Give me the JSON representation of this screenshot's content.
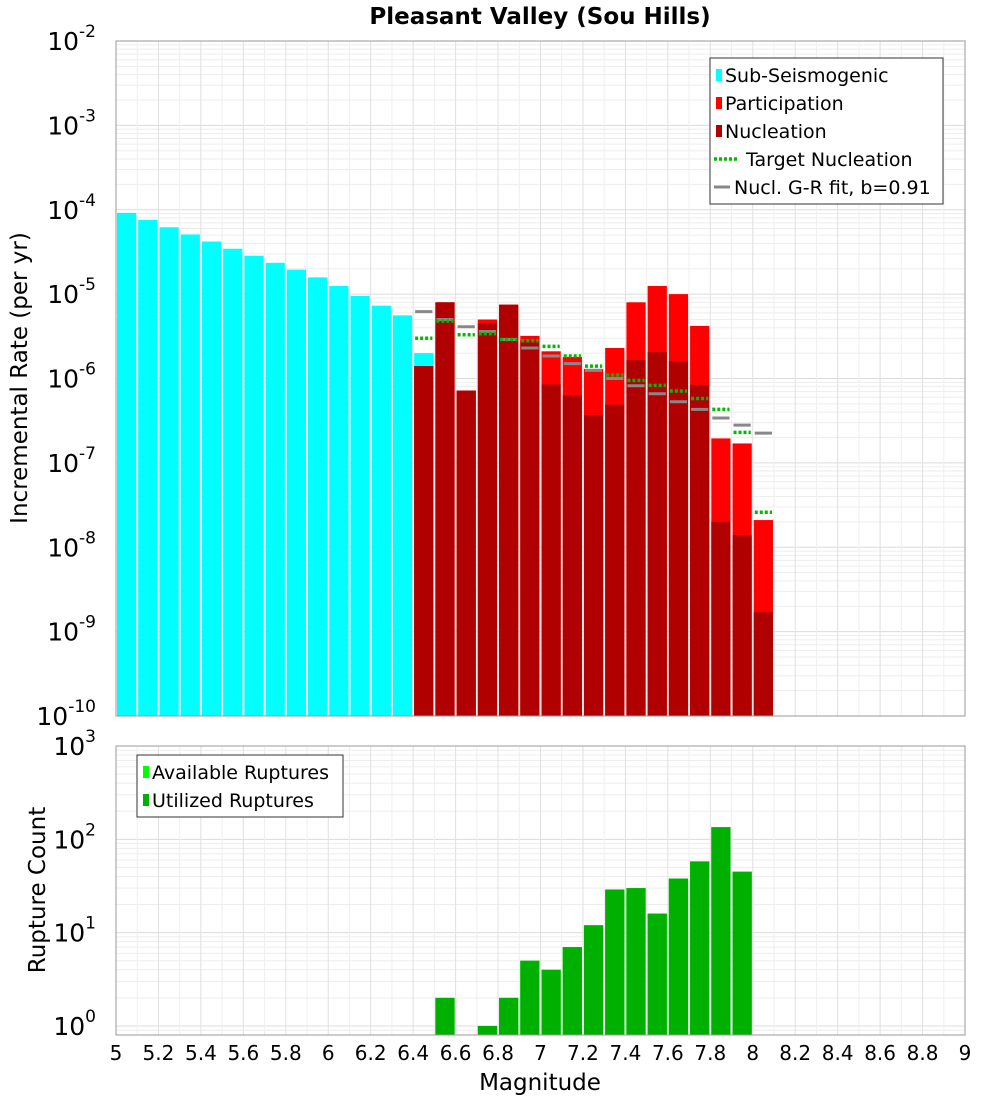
{
  "chart_data": [
    {
      "type": "bar",
      "title": "Pleasant Valley (Sou Hills)",
      "ylabel": "Incremental Rate (per yr)",
      "xlabel": "",
      "xlim": [
        5,
        9
      ],
      "ylim": [
        1e-10,
        0.01
      ],
      "yscale": "log",
      "bin_width": 0.1,
      "y_ticks": [
        {
          "exp": -10,
          "label_base": "10",
          "label_exp": "-10"
        },
        {
          "exp": -9,
          "label_base": "10",
          "label_exp": "-9"
        },
        {
          "exp": -8,
          "label_base": "10",
          "label_exp": "-8"
        },
        {
          "exp": -7,
          "label_base": "10",
          "label_exp": "-7"
        },
        {
          "exp": -6,
          "label_base": "10",
          "label_exp": "-6"
        },
        {
          "exp": -5,
          "label_base": "10",
          "label_exp": "-5"
        },
        {
          "exp": -4,
          "label_base": "10",
          "label_exp": "-4"
        },
        {
          "exp": -3,
          "label_base": "10",
          "label_exp": "-3"
        },
        {
          "exp": -2,
          "label_base": "10",
          "label_exp": "-2"
        }
      ],
      "legend": [
        {
          "label": "Sub-Seismogenic",
          "color": "#00ffff",
          "kind": "box"
        },
        {
          "label": "Participation",
          "color": "#ff0000",
          "kind": "box"
        },
        {
          "label": "Nucleation",
          "color": "#b00000",
          "kind": "box"
        },
        {
          "label": "Target Nucleation",
          "color": "#00bb00",
          "kind": "dotted"
        },
        {
          "label": "Nucl. G-R fit, b=0.91",
          "color": "#888888",
          "kind": "line"
        }
      ],
      "legend_position": "top-right",
      "series": [
        {
          "name": "Sub-Seismogenic",
          "color": "#00ffff",
          "x": [
            5.05,
            5.15,
            5.25,
            5.35,
            5.45,
            5.55,
            5.65,
            5.75,
            5.85,
            5.95,
            6.05,
            6.15,
            6.25,
            6.35,
            6.45
          ],
          "values": [
            9.2e-05,
            7.6e-05,
            6.2e-05,
            5.1e-05,
            4.2e-05,
            3.45e-05,
            2.85e-05,
            2.35e-05,
            1.95e-05,
            1.58e-05,
            1.25e-05,
            9.5e-06,
            7.3e-06,
            5.6e-06,
            2e-06
          ]
        },
        {
          "name": "Participation",
          "color": "#ff0000",
          "x": [
            6.45,
            6.55,
            6.65,
            6.75,
            6.85,
            6.95,
            7.05,
            7.15,
            7.25,
            7.35,
            7.45,
            7.55,
            7.65,
            7.75,
            7.85,
            7.95,
            8.05
          ],
          "values": [
            1.4e-06,
            8e-06,
            7.2e-07,
            5e-06,
            7.5e-06,
            3.2e-06,
            2.1e-06,
            1.8e-06,
            1.3e-06,
            2.3e-06,
            8e-06,
            1.25e-05,
            1e-05,
            4.2e-06,
            1.95e-07,
            1.7e-07,
            2.1e-08
          ]
        },
        {
          "name": "Nucleation",
          "color": "#b00000",
          "x": [
            6.45,
            6.55,
            6.65,
            6.75,
            6.85,
            6.95,
            7.05,
            7.15,
            7.25,
            7.35,
            7.45,
            7.55,
            7.65,
            7.75,
            7.85,
            7.95,
            8.05
          ],
          "values": [
            1.4e-06,
            8e-06,
            7.2e-07,
            4.5e-06,
            7.5e-06,
            2.8e-06,
            8.5e-07,
            6.3e-07,
            3.7e-07,
            4.9e-07,
            1.65e-06,
            2.05e-06,
            1.6e-06,
            8.4e-07,
            2e-08,
            1.4e-08,
            1.7e-09
          ]
        },
        {
          "name": "Target Nucleation",
          "color": "#00bb00",
          "x": [
            6.45,
            6.55,
            6.65,
            6.75,
            6.85,
            6.95,
            7.05,
            7.15,
            7.25,
            7.35,
            7.45,
            7.55,
            7.65,
            7.75,
            7.85,
            7.95,
            8.05
          ],
          "values": [
            3e-06,
            4.8e-06,
            3.3e-06,
            3.4e-06,
            2.9e-06,
            2.8e-06,
            2.4e-06,
            1.85e-06,
            1.4e-06,
            1.1e-06,
            9.5e-07,
            8.3e-07,
            7.1e-07,
            5.8e-07,
            4.3e-07,
            2.3e-07,
            2.6e-08
          ]
        },
        {
          "name": "Nucl. G-R fit, b=0.91",
          "color": "#888888",
          "x": [
            6.45,
            6.55,
            6.65,
            6.75,
            6.85,
            6.95,
            7.05,
            7.15,
            7.25,
            7.35,
            7.45,
            7.55,
            7.65,
            7.75,
            7.85,
            7.95,
            8.05
          ],
          "values": [
            6.2e-06,
            5e-06,
            4.1e-06,
            3.6e-06,
            2.9e-06,
            2.3e-06,
            1.85e-06,
            1.5e-06,
            1.25e-06,
            1e-06,
            8.2e-07,
            6.6e-07,
            5.3e-07,
            4.3e-07,
            3.4e-07,
            2.8e-07,
            2.25e-07
          ]
        }
      ]
    },
    {
      "type": "bar",
      "title": "",
      "ylabel": "Rupture Count",
      "xlabel": "Magnitude",
      "xlim": [
        5,
        9
      ],
      "ylim": [
        0.8,
        1000
      ],
      "yscale": "log",
      "bin_width": 0.1,
      "x_ticks": [
        "5",
        "5.2",
        "5.4",
        "5.6",
        "5.8",
        "6",
        "6.2",
        "6.4",
        "6.6",
        "6.8",
        "7",
        "7.2",
        "7.4",
        "7.6",
        "7.8",
        "8",
        "8.2",
        "8.4",
        "8.6",
        "8.8",
        "9"
      ],
      "y_ticks": [
        {
          "exp": 0,
          "label_base": "10",
          "label_exp": "0"
        },
        {
          "exp": 1,
          "label_base": "10",
          "label_exp": "1"
        },
        {
          "exp": 2,
          "label_base": "10",
          "label_exp": "2"
        },
        {
          "exp": 3,
          "label_base": "10",
          "label_exp": "3"
        }
      ],
      "legend": [
        {
          "label": "Available Ruptures",
          "color": "#00ff00",
          "kind": "box"
        },
        {
          "label": "Utilized Ruptures",
          "color": "#00b000",
          "kind": "box"
        }
      ],
      "legend_position": "top-left",
      "series": [
        {
          "name": "Available Ruptures",
          "color": "#00ff00",
          "x": [
            6.55,
            6.75,
            6.85,
            6.95,
            7.05,
            7.15,
            7.25,
            7.35,
            7.45,
            7.55,
            7.65,
            7.75,
            7.85,
            7.95
          ],
          "values": [
            2,
            1,
            2,
            5,
            4,
            7,
            12,
            29,
            30,
            16,
            38,
            58,
            135,
            45
          ]
        },
        {
          "name": "Utilized Ruptures",
          "color": "#00b000",
          "x": [
            6.55,
            6.75,
            6.85,
            6.95,
            7.05,
            7.15,
            7.25,
            7.35,
            7.45,
            7.55,
            7.65,
            7.75,
            7.85,
            7.95
          ],
          "values": [
            2,
            1,
            2,
            5,
            4,
            7,
            12,
            29,
            30,
            16,
            38,
            58,
            135,
            45
          ]
        }
      ]
    }
  ]
}
